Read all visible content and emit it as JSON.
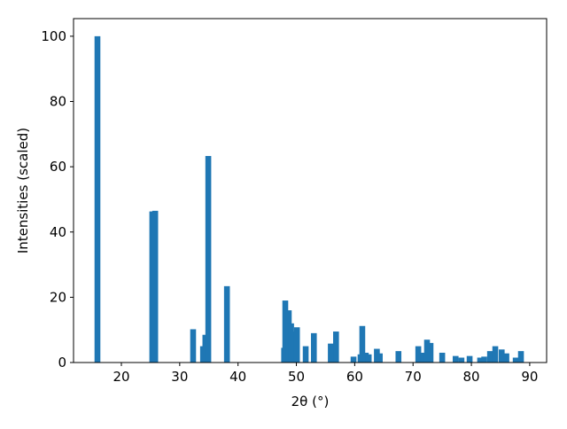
{
  "chart_data": {
    "type": "bar",
    "x_label": "2θ (°)",
    "y_label": "Intensities (scaled)",
    "color": "#1f77b4",
    "bar_width": 1,
    "x": [
      15.9,
      25.3,
      25.8,
      32.3,
      34.0,
      34.4,
      34.9,
      38.1,
      47.9,
      48.1,
      48.7,
      49.1,
      49.6,
      50.1,
      51.6,
      53.0,
      55.9,
      56.8,
      59.8,
      61.0,
      61.3,
      61.9,
      62.4,
      63.8,
      64.3,
      67.5,
      70.9,
      71.8,
      72.4,
      73.0,
      75.0,
      77.3,
      78.3,
      79.7,
      81.5,
      82.2,
      83.2,
      84.1,
      85.2,
      86.0,
      87.6,
      88.5
    ],
    "values": [
      100,
      46.3,
      46.5,
      10.2,
      5,
      8.5,
      63.3,
      23.4,
      4.5,
      19,
      16,
      12,
      9.5,
      10.8,
      5,
      9,
      5.8,
      9.5,
      1.8,
      2.5,
      11.2,
      3,
      2.5,
      4.2,
      2.8,
      3.5,
      5,
      3,
      7,
      6,
      3,
      2,
      1.5,
      2,
      1.5,
      1.8,
      3.5,
      5,
      4,
      2.8,
      1.5,
      3.5
    ],
    "xlim": [
      11.8,
      92.9
    ],
    "xticks": [
      20,
      30,
      40,
      50,
      60,
      70,
      80,
      90
    ],
    "ylim": [
      0,
      105.4
    ],
    "yticks": [
      0,
      20,
      40,
      60,
      80,
      100
    ]
  }
}
